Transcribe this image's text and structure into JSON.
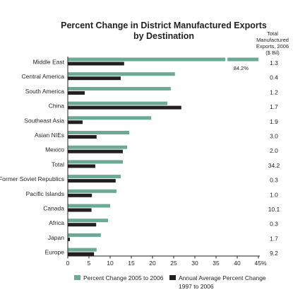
{
  "chart_data": {
    "type": "bar",
    "orientation": "horizontal",
    "title": "Percent Change in District Manufactured Exports",
    "subtitle": "by Destination",
    "right_header": [
      "Total",
      "Manufactured",
      "Exports, 2006",
      "($ Bil)"
    ],
    "categories": [
      "Middle East",
      "Central America",
      "South America",
      "China",
      "Southeast Asia",
      "Asian NIEs",
      "Mexico",
      "Total",
      "Former Soviet Republics",
      "Pacific Islands",
      "Canada",
      "Africa",
      "Japan",
      "Europe"
    ],
    "totals": [
      "1.3",
      "0.4",
      "1.2",
      "1.7",
      "1.9",
      "3.0",
      "2.0",
      "34.2",
      "0.3",
      "1.0",
      "10.1",
      "0.3",
      "1.7",
      "9.2"
    ],
    "series": [
      {
        "name": "Percent Change 2005 to 2006",
        "color": "#6aaa96",
        "values": [
          84.2,
          25.3,
          24.3,
          23.5,
          19.7,
          14.5,
          14.0,
          13.0,
          12.5,
          11.5,
          10.0,
          9.5,
          7.8,
          6.8
        ]
      },
      {
        "name": "Annual Average Percent Change 1997 to 2006",
        "color": "#231f20",
        "values": [
          13.3,
          12.5,
          4.0,
          26.8,
          3.5,
          6.8,
          13.0,
          6.5,
          11.3,
          5.7,
          5.6,
          6.7,
          0.5,
          6.2
        ]
      }
    ],
    "annotation": "84.2%",
    "axis_break": true,
    "xlim": [
      0,
      45
    ],
    "xticks": [
      "0",
      "5",
      "10",
      "15",
      "20",
      "25",
      "30",
      "35",
      "40",
      "45%"
    ],
    "grid": false,
    "legend_position": "bottom"
  }
}
